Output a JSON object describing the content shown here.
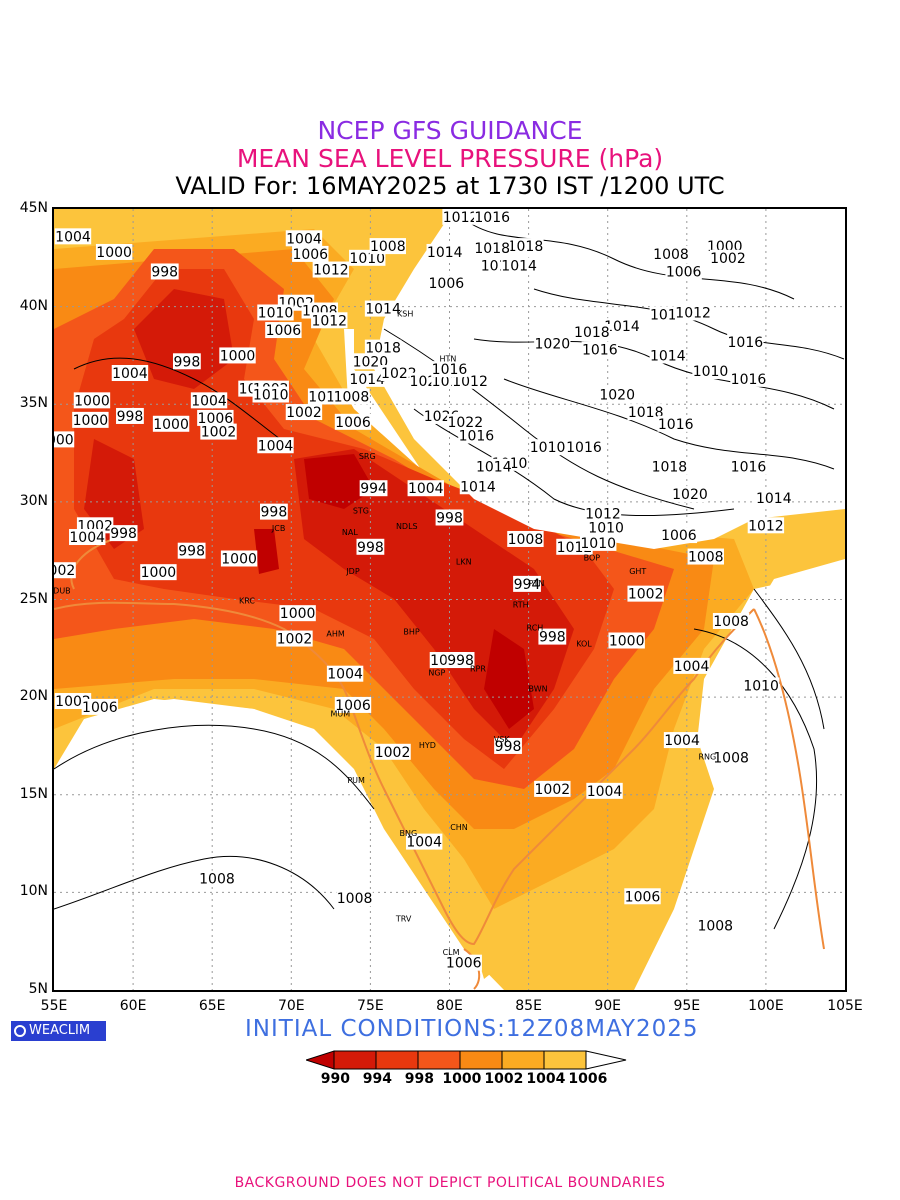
{
  "header": {
    "line1": "NCEP GFS GUIDANCE",
    "line2": "MEAN SEA LEVEL PRESSURE (hPa)",
    "line3": "VALID For: 16MAY2025 at 1730 IST /1200 UTC"
  },
  "colors": {
    "title1": "#8a2be2",
    "title2": "#e8127c",
    "initial": "#3e6fe0",
    "footer": "#e8127c",
    "shade_990": "#c00000",
    "shade_994": "#d41a08",
    "shade_998": "#e8380e",
    "shade_1000": "#f4561a",
    "shade_1002": "#f98a14",
    "shade_1004": "#fbab22",
    "shade_1006": "#fcc43c",
    "coast": "#ef8a3a"
  },
  "axes": {
    "lat_labels": [
      "45N",
      "40N",
      "35N",
      "30N",
      "25N",
      "20N",
      "15N",
      "10N",
      "5N"
    ],
    "lon_labels": [
      "55E",
      "60E",
      "65E",
      "70E",
      "75E",
      "80E",
      "85E",
      "90E",
      "95E",
      "100E",
      "105E"
    ],
    "lat_range": [
      5,
      45
    ],
    "lon_range": [
      55,
      105
    ],
    "grid": true
  },
  "contour_labels": [
    {
      "text": "1012",
      "lon": 80.7,
      "lat": 44.6
    },
    {
      "text": "1016",
      "lon": 82.7,
      "lat": 44.6
    },
    {
      "text": "1004",
      "lon": 56.2,
      "lat": 43.6
    },
    {
      "text": "1000",
      "lon": 58.8,
      "lat": 42.8
    },
    {
      "text": "1004",
      "lon": 70.8,
      "lat": 43.5
    },
    {
      "text": "1006",
      "lon": 71.2,
      "lat": 42.7
    },
    {
      "text": "1010",
      "lon": 74.8,
      "lat": 42.5
    },
    {
      "text": "1008",
      "lon": 76.1,
      "lat": 43.1
    },
    {
      "text": "1014",
      "lon": 79.7,
      "lat": 42.8
    },
    {
      "text": "1018",
      "lon": 84.8,
      "lat": 43.1
    },
    {
      "text": "1018",
      "lon": 82.7,
      "lat": 43.0
    },
    {
      "text": "1010",
      "lon": 83.1,
      "lat": 42.1
    },
    {
      "text": "1014",
      "lon": 84.4,
      "lat": 42.1
    },
    {
      "text": "1012",
      "lon": 72.5,
      "lat": 41.9
    },
    {
      "text": "998",
      "lon": 62.0,
      "lat": 41.8
    },
    {
      "text": "1006",
      "lon": 79.8,
      "lat": 41.2
    },
    {
      "text": "1008",
      "lon": 94.0,
      "lat": 42.7
    },
    {
      "text": "1006",
      "lon": 94.8,
      "lat": 41.8
    },
    {
      "text": "1000",
      "lon": 97.4,
      "lat": 43.1
    },
    {
      "text": "1002",
      "lon": 97.6,
      "lat": 42.5
    },
    {
      "text": "1002",
      "lon": 70.3,
      "lat": 40.2
    },
    {
      "text": "1010",
      "lon": 69.0,
      "lat": 39.7
    },
    {
      "text": "1008",
      "lon": 71.8,
      "lat": 39.8
    },
    {
      "text": "1012",
      "lon": 72.4,
      "lat": 39.3
    },
    {
      "text": "1014",
      "lon": 75.8,
      "lat": 39.9
    },
    {
      "text": "1006",
      "lon": 69.5,
      "lat": 38.8
    },
    {
      "text": "1018",
      "lon": 93.8,
      "lat": 39.6
    },
    {
      "text": "1012",
      "lon": 95.4,
      "lat": 39.7
    },
    {
      "text": "1014",
      "lon": 90.9,
      "lat": 39.0
    },
    {
      "text": "1018",
      "lon": 89.0,
      "lat": 38.7
    },
    {
      "text": "1018",
      "lon": 75.8,
      "lat": 37.9
    },
    {
      "text": "1020",
      "lon": 86.5,
      "lat": 38.1
    },
    {
      "text": "1016",
      "lon": 89.5,
      "lat": 37.8
    },
    {
      "text": "1016",
      "lon": 98.7,
      "lat": 38.2
    },
    {
      "text": "1000",
      "lon": 66.6,
      "lat": 37.5
    },
    {
      "text": "998",
      "lon": 63.4,
      "lat": 37.2
    },
    {
      "text": "1014",
      "lon": 93.8,
      "lat": 37.5
    },
    {
      "text": "1004",
      "lon": 59.8,
      "lat": 36.6
    },
    {
      "text": "1010",
      "lon": 96.5,
      "lat": 36.7
    },
    {
      "text": "1016",
      "lon": 98.9,
      "lat": 36.3
    },
    {
      "text": "1020",
      "lon": 75.0,
      "lat": 37.2
    },
    {
      "text": "1014",
      "lon": 74.8,
      "lat": 36.3
    },
    {
      "text": "1022",
      "lon": 76.8,
      "lat": 36.6
    },
    {
      "text": "1024",
      "lon": 78.6,
      "lat": 36.2
    },
    {
      "text": "1016",
      "lon": 80.0,
      "lat": 36.2
    },
    {
      "text": "1012",
      "lon": 81.3,
      "lat": 36.2
    },
    {
      "text": "1016",
      "lon": 80.0,
      "lat": 36.8
    },
    {
      "text": "1008",
      "lon": 67.8,
      "lat": 35.8
    },
    {
      "text": "1002",
      "lon": 68.7,
      "lat": 35.8
    },
    {
      "text": "1010",
      "lon": 68.7,
      "lat": 35.5
    },
    {
      "text": "1012",
      "lon": 72.2,
      "lat": 35.4
    },
    {
      "text": "1008",
      "lon": 73.8,
      "lat": 35.4
    },
    {
      "text": "1000",
      "lon": 57.4,
      "lat": 35.2
    },
    {
      "text": "1004",
      "lon": 64.8,
      "lat": 35.2
    },
    {
      "text": "1020",
      "lon": 90.6,
      "lat": 35.5
    },
    {
      "text": "1002",
      "lon": 70.8,
      "lat": 34.6
    },
    {
      "text": "1000",
      "lon": 57.3,
      "lat": 34.2
    },
    {
      "text": "998",
      "lon": 59.8,
      "lat": 34.4
    },
    {
      "text": "1000",
      "lon": 62.4,
      "lat": 34.0
    },
    {
      "text": "1006",
      "lon": 65.2,
      "lat": 34.3
    },
    {
      "text": "1002",
      "lon": 65.4,
      "lat": 33.6
    },
    {
      "text": "1006",
      "lon": 73.9,
      "lat": 34.1
    },
    {
      "text": "1026",
      "lon": 79.5,
      "lat": 34.4
    },
    {
      "text": "1022",
      "lon": 81.0,
      "lat": 34.1
    },
    {
      "text": "1018",
      "lon": 92.4,
      "lat": 34.6
    },
    {
      "text": "1016",
      "lon": 94.3,
      "lat": 34.0
    },
    {
      "text": "1016",
      "lon": 81.7,
      "lat": 33.4
    },
    {
      "text": "000",
      "lon": 55.4,
      "lat": 33.2
    },
    {
      "text": "1004",
      "lon": 69.0,
      "lat": 32.9
    },
    {
      "text": "1010",
      "lon": 86.2,
      "lat": 32.8
    },
    {
      "text": "1016",
      "lon": 88.5,
      "lat": 32.8
    },
    {
      "text": "1010",
      "lon": 83.8,
      "lat": 32.0
    },
    {
      "text": "1018",
      "lon": 93.9,
      "lat": 31.8
    },
    {
      "text": "1016",
      "lon": 98.9,
      "lat": 31.8
    },
    {
      "text": "1014",
      "lon": 82.8,
      "lat": 31.8
    },
    {
      "text": "994",
      "lon": 75.2,
      "lat": 30.7
    },
    {
      "text": "1004",
      "lon": 78.5,
      "lat": 30.7
    },
    {
      "text": "1014",
      "lon": 81.8,
      "lat": 30.8
    },
    {
      "text": "1020",
      "lon": 95.2,
      "lat": 30.4
    },
    {
      "text": "1014",
      "lon": 100.5,
      "lat": 30.2
    },
    {
      "text": "998",
      "lon": 68.9,
      "lat": 29.5
    },
    {
      "text": "998",
      "lon": 80.0,
      "lat": 29.2
    },
    {
      "text": "1012",
      "lon": 89.7,
      "lat": 29.4
    },
    {
      "text": "1010",
      "lon": 89.9,
      "lat": 28.7
    },
    {
      "text": "1002",
      "lon": 57.6,
      "lat": 28.8
    },
    {
      "text": "998",
      "lon": 59.4,
      "lat": 28.4
    },
    {
      "text": "1004",
      "lon": 57.1,
      "lat": 28.2
    },
    {
      "text": "1008",
      "lon": 84.8,
      "lat": 28.1
    },
    {
      "text": "1012",
      "lon": 87.9,
      "lat": 27.7
    },
    {
      "text": "1010",
      "lon": 89.4,
      "lat": 27.9
    },
    {
      "text": "1006",
      "lon": 94.5,
      "lat": 28.3
    },
    {
      "text": "1012",
      "lon": 100.0,
      "lat": 28.8
    },
    {
      "text": "998",
      "lon": 75.0,
      "lat": 27.7
    },
    {
      "text": "998",
      "lon": 63.7,
      "lat": 27.5
    },
    {
      "text": "1000",
      "lon": 66.7,
      "lat": 27.1
    },
    {
      "text": "1008",
      "lon": 96.2,
      "lat": 27.2
    },
    {
      "text": "002",
      "lon": 55.5,
      "lat": 26.5
    },
    {
      "text": "1000",
      "lon": 61.6,
      "lat": 26.4
    },
    {
      "text": "994",
      "lon": 84.9,
      "lat": 25.8
    },
    {
      "text": "1002",
      "lon": 92.4,
      "lat": 25.3
    },
    {
      "text": "1000",
      "lon": 70.4,
      "lat": 24.3
    },
    {
      "text": "1008",
      "lon": 97.8,
      "lat": 23.9
    },
    {
      "text": "1002",
      "lon": 70.2,
      "lat": 23.0
    },
    {
      "text": "998",
      "lon": 86.5,
      "lat": 23.1
    },
    {
      "text": "1000",
      "lon": 91.2,
      "lat": 22.9
    },
    {
      "text": "1000",
      "lon": 79.9,
      "lat": 21.9
    },
    {
      "text": "998",
      "lon": 80.7,
      "lat": 21.9
    },
    {
      "text": "1004",
      "lon": 73.4,
      "lat": 21.2
    },
    {
      "text": "1004",
      "lon": 95.3,
      "lat": 21.6
    },
    {
      "text": "1010",
      "lon": 99.7,
      "lat": 20.6
    },
    {
      "text": "1002",
      "lon": 56.2,
      "lat": 19.8
    },
    {
      "text": "1006",
      "lon": 57.9,
      "lat": 19.5
    },
    {
      "text": "1006",
      "lon": 73.9,
      "lat": 19.6
    },
    {
      "text": "998",
      "lon": 83.7,
      "lat": 17.5
    },
    {
      "text": "1002",
      "lon": 76.4,
      "lat": 17.2
    },
    {
      "text": "1004",
      "lon": 94.7,
      "lat": 17.8
    },
    {
      "text": "1008",
      "lon": 97.8,
      "lat": 16.9
    },
    {
      "text": "1002",
      "lon": 86.5,
      "lat": 15.3
    },
    {
      "text": "1004",
      "lon": 89.8,
      "lat": 15.2
    },
    {
      "text": "1004",
      "lon": 78.4,
      "lat": 12.6
    },
    {
      "text": "1008",
      "lon": 65.3,
      "lat": 10.7
    },
    {
      "text": "1008",
      "lon": 74.0,
      "lat": 9.7
    },
    {
      "text": "1006",
      "lon": 92.2,
      "lat": 9.8
    },
    {
      "text": "1008",
      "lon": 96.8,
      "lat": 8.3
    },
    {
      "text": "1006",
      "lon": 80.9,
      "lat": 6.4
    }
  ],
  "cities": [
    {
      "text": "KSH",
      "lon": 77.2,
      "lat": 39.5
    },
    {
      "text": "HTN",
      "lon": 79.9,
      "lat": 37.2
    },
    {
      "text": "SRG",
      "lon": 74.8,
      "lat": 32.2
    },
    {
      "text": "STG",
      "lon": 74.4,
      "lat": 29.4
    },
    {
      "text": "NDLS",
      "lon": 77.3,
      "lat": 28.6
    },
    {
      "text": "JCB",
      "lon": 69.2,
      "lat": 28.5
    },
    {
      "text": "NAL",
      "lon": 73.7,
      "lat": 28.3
    },
    {
      "text": "JDP",
      "lon": 73.9,
      "lat": 26.3
    },
    {
      "text": "LKN",
      "lon": 80.9,
      "lat": 26.8
    },
    {
      "text": "PTN",
      "lon": 85.5,
      "lat": 25.7
    },
    {
      "text": "RTH",
      "lon": 84.5,
      "lat": 24.6
    },
    {
      "text": "GHT",
      "lon": 91.9,
      "lat": 26.3
    },
    {
      "text": "BOP",
      "lon": 89.0,
      "lat": 27.0
    },
    {
      "text": "DUB",
      "lon": 55.5,
      "lat": 25.3
    },
    {
      "text": "KRC",
      "lon": 67.2,
      "lat": 24.8
    },
    {
      "text": "AHM",
      "lon": 72.8,
      "lat": 23.1
    },
    {
      "text": "BHP",
      "lon": 77.6,
      "lat": 23.2
    },
    {
      "text": "KOL",
      "lon": 88.5,
      "lat": 22.6
    },
    {
      "text": "RCH",
      "lon": 85.4,
      "lat": 23.4
    },
    {
      "text": "NGP",
      "lon": 79.2,
      "lat": 21.1
    },
    {
      "text": "RPR",
      "lon": 81.8,
      "lat": 21.3
    },
    {
      "text": "BWN",
      "lon": 85.6,
      "lat": 20.3
    },
    {
      "text": "MUM",
      "lon": 73.1,
      "lat": 19.0
    },
    {
      "text": "HYD",
      "lon": 78.6,
      "lat": 17.4
    },
    {
      "text": "VSK",
      "lon": 83.3,
      "lat": 17.7
    },
    {
      "text": "RNG",
      "lon": 96.3,
      "lat": 16.8
    },
    {
      "text": "PUM",
      "lon": 74.1,
      "lat": 15.6
    },
    {
      "text": "CHN",
      "lon": 80.6,
      "lat": 13.2
    },
    {
      "text": "BNG",
      "lon": 77.4,
      "lat": 12.9
    },
    {
      "text": "TRV",
      "lon": 77.1,
      "lat": 8.5
    },
    {
      "text": "CLM",
      "lon": 80.1,
      "lat": 6.8
    }
  ],
  "initial_conditions": "INITIAL  CONDITIONS:12Z08MAY2025",
  "logo_text": "WEACLIM",
  "legend": {
    "levels": [
      "990",
      "994",
      "998",
      "1000",
      "1002",
      "1004",
      "1006"
    ],
    "colors": [
      "#c00000",
      "#d41a08",
      "#e8380e",
      "#f4561a",
      "#f98a14",
      "#fbab22",
      "#fcc43c"
    ]
  },
  "footer": "BACKGROUND DOES NOT DEPICT POLITICAL BOUNDARIES"
}
